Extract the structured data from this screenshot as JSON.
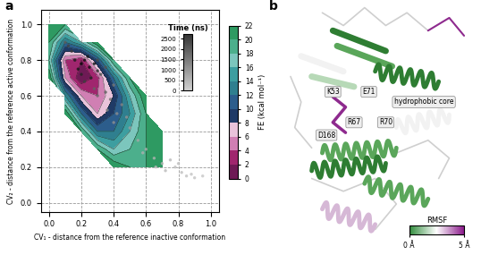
{
  "panel_labels": [
    "a",
    "b"
  ],
  "chart_data": {
    "type": "contour",
    "xlabel": "CV₁ - distance from the reference inactive conformation",
    "ylabel": "CV₂ - distance from the reference active conformation",
    "xlim": [
      -0.05,
      1.05
    ],
    "ylim": [
      -0.05,
      1.08
    ],
    "xticks": [
      0.0,
      0.2,
      0.4,
      0.6,
      0.8,
      1.0
    ],
    "yticks": [
      0.0,
      0.2,
      0.4,
      0.6,
      0.8,
      1.0
    ],
    "grid": true,
    "fe": {
      "x": [
        0.0,
        0.1,
        0.2,
        0.3,
        0.4,
        0.5,
        0.6,
        0.7,
        0.8
      ],
      "y": [
        0.2,
        0.3,
        0.4,
        0.5,
        0.6,
        0.7,
        0.8,
        0.9,
        1.0
      ],
      "values": [
        [
          null,
          null,
          null,
          null,
          22,
          20,
          20,
          22,
          null
        ],
        [
          null,
          null,
          null,
          20,
          16,
          18,
          20,
          22,
          null
        ],
        [
          null,
          null,
          20,
          12,
          12,
          16,
          20,
          22,
          null
        ],
        [
          null,
          22,
          12,
          6,
          10,
          14,
          20,
          null,
          null
        ],
        [
          null,
          14,
          6,
          4,
          8,
          16,
          22,
          null,
          null
        ],
        [
          22,
          6,
          0,
          3,
          12,
          20,
          null,
          null,
          null
        ],
        [
          18,
          4,
          2,
          10,
          20,
          null,
          null,
          null,
          null
        ],
        [
          20,
          12,
          16,
          22,
          null,
          null,
          null,
          null,
          null
        ],
        [
          22,
          20,
          null,
          null,
          null,
          null,
          null,
          null,
          null
        ]
      ]
    },
    "fe_colorbar": {
      "label": "FE (kcal mol⁻¹)",
      "range": [
        0,
        22
      ],
      "ticks": [
        0,
        2,
        4,
        6,
        8,
        10,
        12,
        14,
        16,
        18,
        20,
        22
      ],
      "colors": [
        "#6e1a55",
        "#a0266e",
        "#d07fb3",
        "#e9c3da",
        "#1f3a66",
        "#2c5d8c",
        "#2f7f8f",
        "#3d9ea0",
        "#7cc6bd",
        "#4caf8c",
        "#2e9a62"
      ]
    },
    "points": {
      "x": [
        0.2,
        0.22,
        0.18,
        0.25,
        0.24,
        0.28,
        0.2,
        0.16,
        0.3,
        0.26,
        0.14,
        0.12,
        0.3,
        0.32,
        0.22,
        0.35,
        0.35,
        0.3,
        0.38,
        0.28,
        0.4,
        0.1,
        0.45,
        0.42,
        0.48,
        0.36,
        0.5,
        0.4,
        0.55,
        0.6,
        0.58,
        0.65,
        0.7,
        0.72,
        0.78,
        0.82,
        0.85,
        0.88,
        0.9,
        0.95,
        0.75,
        0.66,
        0.8
      ],
      "y": [
        0.78,
        0.8,
        0.75,
        0.76,
        0.82,
        0.78,
        0.72,
        0.8,
        0.74,
        0.7,
        0.85,
        0.88,
        0.8,
        0.72,
        0.68,
        0.76,
        0.62,
        0.6,
        0.58,
        0.64,
        0.66,
        0.9,
        0.55,
        0.5,
        0.48,
        0.52,
        0.42,
        0.45,
        0.35,
        0.3,
        0.28,
        0.25,
        0.22,
        0.18,
        0.2,
        0.17,
        0.15,
        0.16,
        0.14,
        0.15,
        0.24,
        0.2,
        0.22
      ],
      "time": [
        2600,
        2500,
        2400,
        2550,
        2300,
        2450,
        2200,
        2350,
        2100,
        2250,
        1900,
        1800,
        1700,
        1600,
        1850,
        1550,
        1400,
        1300,
        1200,
        1350,
        1100,
        1450,
        900,
        800,
        700,
        850,
        600,
        750,
        450,
        400,
        350,
        300,
        250,
        200,
        150,
        120,
        100,
        80,
        60,
        30,
        220,
        180,
        140
      ]
    },
    "time_colorbar": {
      "label": "Time (ns)",
      "range": [
        0,
        2700
      ],
      "ticks": [
        0,
        500,
        1000,
        1500,
        2000,
        2500
      ]
    }
  },
  "structure": {
    "residue_labels": [
      "K53",
      "E71",
      "D168",
      "R67",
      "R70"
    ],
    "region_label": "hydrophobic core",
    "rmsf_colorbar": {
      "label": "RMSF",
      "range": [
        0,
        5
      ],
      "ticks": [
        {
          "value": 0,
          "label": "0 Å"
        },
        {
          "value": 5,
          "label": "5 Å"
        }
      ]
    }
  }
}
